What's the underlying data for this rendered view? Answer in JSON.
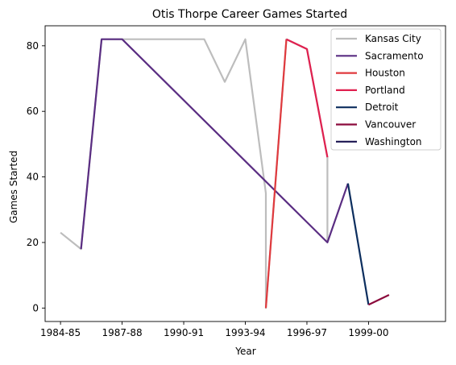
{
  "chart_data": {
    "type": "line",
    "title": "Otis Thorpe Career Games Started",
    "xlabel": "Year",
    "ylabel": "Games Started",
    "xlim": [
      1983.25,
      2002.75
    ],
    "ylim": [
      -4.1,
      86.1
    ],
    "x_ticks": [
      {
        "value": 1984,
        "label": "1984-85"
      },
      {
        "value": 1987,
        "label": "1987-88"
      },
      {
        "value": 1990,
        "label": "1990-91"
      },
      {
        "value": 1993,
        "label": "1993-94"
      },
      {
        "value": 1996,
        "label": "1996-97"
      },
      {
        "value": 1999,
        "label": "1999-00"
      }
    ],
    "y_ticks": [
      0,
      20,
      40,
      60,
      80
    ],
    "grid": false,
    "legend_position": "top-right",
    "series": [
      {
        "name": "Kansas City",
        "color": "#bdbdbd",
        "x": [
          1984,
          1985,
          1986,
          1987,
          1988,
          1989,
          1990,
          1991,
          1992,
          1993,
          1994,
          1994,
          1995,
          1996,
          1997,
          1997
        ],
        "y": [
          23,
          18,
          82,
          82,
          82,
          82,
          82,
          82,
          69,
          82,
          35,
          0,
          82,
          79,
          46,
          20
        ]
      },
      {
        "name": "Sacramento",
        "color": "#5a2d82",
        "x": [
          1985,
          1986,
          1987,
          1997,
          1998
        ],
        "y": [
          18,
          82,
          82,
          20,
          38
        ]
      },
      {
        "name": "Houston",
        "color": "#e03a3e",
        "x": [
          1994,
          1995
        ],
        "y": [
          0,
          82
        ]
      },
      {
        "name": "Portland",
        "color": "#e0204f",
        "x": [
          1995,
          1996,
          1997
        ],
        "y": [
          82,
          79,
          46
        ]
      },
      {
        "name": "Detroit",
        "color": "#0c2e5e",
        "x": [
          1998,
          1999
        ],
        "y": [
          38,
          1
        ]
      },
      {
        "name": "Vancouver",
        "color": "#8b0a3c",
        "x": [
          1999,
          2000
        ],
        "y": [
          1,
          4
        ]
      },
      {
        "name": "Washington",
        "color": "#1a1450",
        "x": [],
        "y": []
      }
    ]
  }
}
